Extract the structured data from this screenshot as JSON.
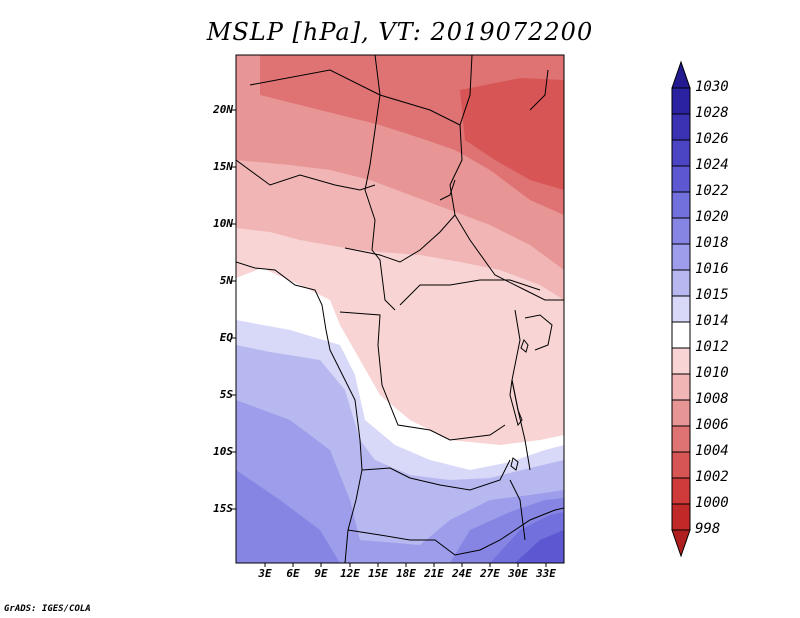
{
  "title": "MSLP [hPa], VT: 2019072200",
  "map": {
    "lat_labels": [
      "20N",
      "15N",
      "10N",
      "5N",
      "EQ",
      "5S",
      "10S",
      "15S"
    ],
    "lon_labels": [
      "3E",
      "6E",
      "9E",
      "12E",
      "15E",
      "18E",
      "21E",
      "24E",
      "27E",
      "30E",
      "33E"
    ]
  },
  "colorbar": {
    "levels": [
      "1030",
      "1028",
      "1026",
      "1024",
      "1022",
      "1020",
      "1018",
      "1016",
      "1015",
      "1014",
      "1012",
      "1010",
      "1008",
      "1006",
      "1004",
      "1002",
      "1000",
      "998"
    ],
    "colors": {
      "top_triangle": "#231a8f",
      "bands": [
        "#2b22a1",
        "#3a32b3",
        "#4b45c4",
        "#5d58d2",
        "#7170dc",
        "#8685e4",
        "#9d9deb",
        "#b8b8f1",
        "#d8d8f8",
        "#ffffff",
        "#f8d4d4",
        "#f1b5b5",
        "#e89595",
        "#df7373",
        "#d85555",
        "#cf3a3a",
        "#c12828"
      ],
      "bottom_triangle": "#b01f1f"
    }
  },
  "credit": "GrADS: IGES/COLA"
}
